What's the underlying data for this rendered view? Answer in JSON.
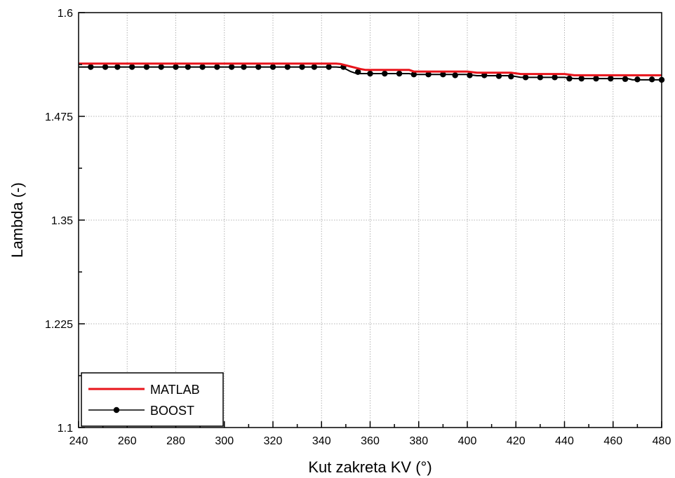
{
  "chart_data": {
    "type": "line",
    "xlabel": "Kut zakreta KV (°)",
    "ylabel": "Lambda (-)",
    "xlim": [
      240,
      480
    ],
    "ylim": [
      1.1,
      1.6
    ],
    "x_ticks": [
      "240",
      "260",
      "280",
      "300",
      "320",
      "340",
      "360",
      "380",
      "400",
      "420",
      "440",
      "460",
      "480"
    ],
    "y_ticks": [
      "1.1",
      "1.225",
      "1.35",
      "1.475",
      "1.6"
    ],
    "grid": true,
    "legend_position": "bottom-left",
    "series": [
      {
        "name": "MATLAB",
        "color": "#e8141b",
        "marker": "none",
        "x": [
          240,
          346,
          348,
          350,
          352,
          354,
          356,
          358,
          376,
          378,
          400,
          404,
          418,
          422,
          440,
          444,
          480
        ],
        "y": [
          1.5385,
          1.5385,
          1.538,
          1.5365,
          1.535,
          1.5335,
          1.532,
          1.531,
          1.531,
          1.529,
          1.529,
          1.5275,
          1.5275,
          1.526,
          1.526,
          1.5245,
          1.5245
        ]
      },
      {
        "name": "BOOST",
        "color": "#000000",
        "marker": "circle",
        "x": [
          240,
          346,
          348,
          350,
          352,
          354,
          356,
          358,
          376,
          378,
          400,
          404,
          418,
          422,
          440,
          444,
          466,
          468,
          480
        ],
        "y": [
          1.5345,
          1.5345,
          1.534,
          1.532,
          1.529,
          1.527,
          1.5265,
          1.5265,
          1.5265,
          1.5255,
          1.5255,
          1.524,
          1.524,
          1.522,
          1.522,
          1.5205,
          1.5205,
          1.519,
          1.519
        ],
        "marker_x": [
          245,
          251,
          256,
          262,
          268,
          274,
          280,
          285,
          291,
          297,
          303,
          308,
          314,
          320,
          326,
          332,
          337,
          343,
          349,
          355,
          360,
          366,
          372,
          378,
          384,
          390,
          395,
          401,
          407,
          413,
          418,
          424,
          430,
          436,
          442,
          447,
          453,
          459,
          465,
          470,
          476,
          481
        ],
        "marker_y": [
          1.5345,
          1.5345,
          1.5345,
          1.5345,
          1.5345,
          1.5345,
          1.5345,
          1.5345,
          1.5345,
          1.5345,
          1.5345,
          1.5345,
          1.5345,
          1.5345,
          1.5345,
          1.5345,
          1.5345,
          1.5345,
          1.5345,
          1.5285,
          1.5265,
          1.5265,
          1.5265,
          1.5255,
          1.5255,
          1.5255,
          1.5245,
          1.5245,
          1.5245,
          1.5235,
          1.523,
          1.522,
          1.522,
          1.522,
          1.5205,
          1.5205,
          1.5205,
          1.5205,
          1.52,
          1.5195,
          1.5195,
          1.519
        ]
      }
    ]
  }
}
